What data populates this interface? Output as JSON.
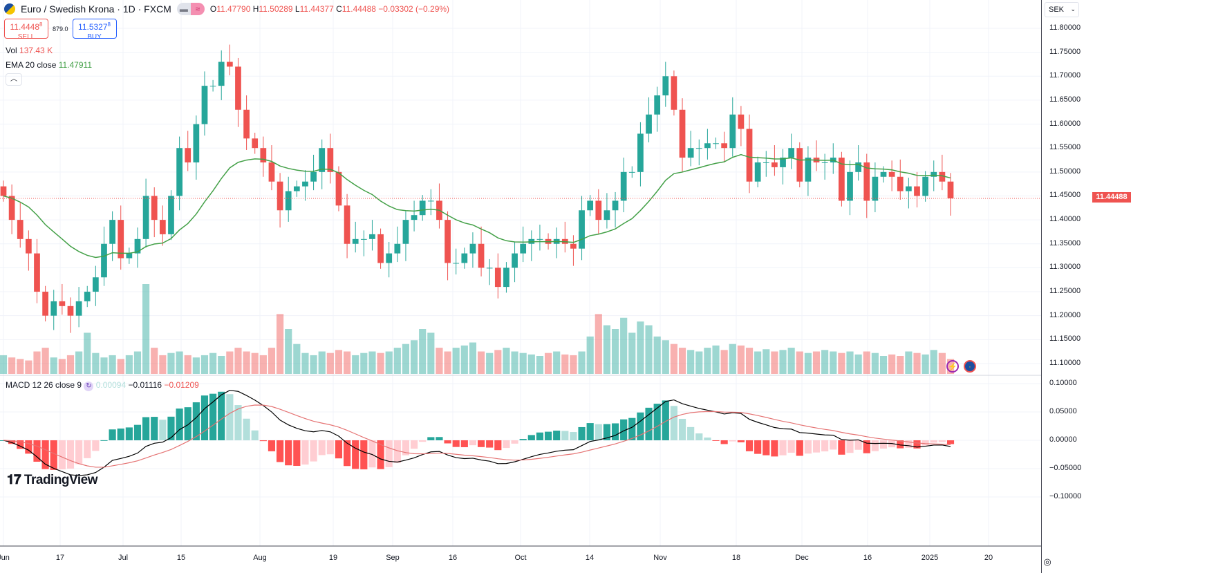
{
  "header": {
    "title": "Euro / Swedish Krona · 1D · FXCM",
    "ohlc": {
      "o_label": "O",
      "o": "11.47790",
      "h_label": "H",
      "h": "11.50289",
      "l_label": "L",
      "l": "11.44377",
      "c_label": "C",
      "c": "11.44488",
      "change": "−0.03302 (−0.29%)"
    }
  },
  "trade": {
    "sell_price": "11.4448",
    "sell_sup": "8",
    "sell_label": "SELL",
    "spread": "879.0",
    "buy_price": "11.5327",
    "buy_sup": "8",
    "buy_label": "BUY"
  },
  "indicators": {
    "vol_label": "Vol",
    "vol_value": "137.43 K",
    "ema_label": "EMA 20 close",
    "ema_value": "11.47911",
    "macd_label": "MACD 12 26 close 9",
    "macd_hist": "0.00094",
    "macd_value": "−0.01116",
    "macd_signal": "−0.01209"
  },
  "currency": "SEK",
  "last_price": "11.44488",
  "logo_text": "TradingView",
  "colors": {
    "up": "#26a69a",
    "down": "#ef5350",
    "ema": "#43a047",
    "macd": "#000000",
    "signal": "#e57373"
  },
  "icons": [
    "flag-icon",
    "lightning-icon",
    "globe-icon",
    "eye-icon",
    "chevron-up-icon",
    "chevron-down-icon",
    "refresh-icon"
  ],
  "chart_data": {
    "type": "candlestick",
    "price_ticks": [
      "11.80000",
      "11.75000",
      "11.70000",
      "11.65000",
      "11.60000",
      "11.55000",
      "11.50000",
      "11.45000",
      "11.40000",
      "11.35000",
      "11.30000",
      "11.25000",
      "11.20000",
      "11.15000",
      "11.10000"
    ],
    "macd_ticks": [
      "0.10000",
      "0.05000",
      "0.00000",
      "−0.05000",
      "−0.10000"
    ],
    "date_ticks": [
      "Jun",
      "17",
      "Jul",
      "15",
      "Aug",
      "19",
      "Sep",
      "16",
      "Oct",
      "14",
      "Nov",
      "18",
      "Dec",
      "16",
      "2025",
      "20"
    ],
    "ylim": [
      11.1,
      11.8
    ],
    "closes": [
      11.45,
      11.4,
      11.36,
      11.33,
      11.25,
      11.2,
      11.23,
      11.22,
      11.2,
      11.23,
      11.25,
      11.28,
      11.35,
      11.4,
      11.32,
      11.33,
      11.36,
      11.45,
      11.4,
      11.37,
      11.45,
      11.55,
      11.52,
      11.6,
      11.68,
      11.68,
      11.73,
      11.72,
      11.63,
      11.57,
      11.55,
      11.52,
      11.48,
      11.42,
      11.46,
      11.47,
      11.48,
      11.5,
      11.55,
      11.5,
      11.43,
      11.35,
      11.36,
      11.36,
      11.37,
      11.31,
      11.33,
      11.35,
      11.4,
      11.41,
      11.44,
      11.44,
      11.4,
      11.31,
      11.31,
      11.33,
      11.35,
      11.3,
      11.3,
      11.26,
      11.3,
      11.33,
      11.35,
      11.36,
      11.36,
      11.35,
      11.36,
      11.35,
      11.34,
      11.42,
      11.44,
      11.4,
      11.42,
      11.44,
      11.5,
      11.5,
      11.58,
      11.62,
      11.66,
      11.7,
      11.63,
      11.53,
      11.55,
      11.55,
      11.56,
      11.56,
      11.55,
      11.62,
      11.59,
      11.48,
      11.52,
      11.52,
      11.51,
      11.53,
      11.55,
      11.48,
      11.53,
      11.52,
      11.52,
      11.53,
      11.44,
      11.5,
      11.52,
      11.44,
      11.49,
      11.5,
      11.49,
      11.46,
      11.47,
      11.45,
      11.49,
      11.5,
      11.48,
      11.44488
    ],
    "volumes": [
      25,
      22,
      20,
      18,
      30,
      35,
      22,
      20,
      25,
      30,
      55,
      28,
      22,
      25,
      20,
      25,
      30,
      120,
      35,
      25,
      28,
      30,
      25,
      22,
      25,
      28,
      24,
      30,
      35,
      30,
      28,
      25,
      35,
      80,
      60,
      40,
      28,
      25,
      30,
      28,
      32,
      30,
      25,
      28,
      30,
      28,
      30,
      35,
      40,
      45,
      60,
      55,
      35,
      30,
      35,
      38,
      42,
      30,
      28,
      32,
      35,
      30,
      28,
      26,
      24,
      28,
      30,
      26,
      25,
      30,
      50,
      80,
      65,
      60,
      75,
      55,
      70,
      65,
      50,
      45,
      40,
      35,
      32,
      30,
      35,
      38,
      32,
      40,
      38,
      35,
      30,
      33,
      30,
      32,
      35,
      30,
      28,
      30,
      32,
      30,
      28,
      30,
      26,
      30,
      28,
      24,
      26,
      24,
      30,
      28,
      26,
      32,
      28,
      20
    ]
  }
}
